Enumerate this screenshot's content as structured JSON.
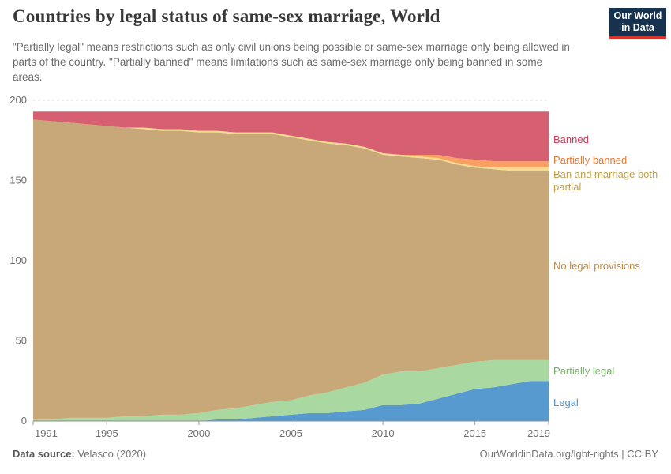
{
  "header": {
    "title": "Countries by legal status of same-sex marriage, World",
    "subtitle": "\"Partially legal\" means restrictions such as only civil unions being possible or same-sex marriage only being allowed in parts of the country. \"Partially banned\" means limitations such as same-sex marriage only being banned in some areas.",
    "logo": {
      "line1": "Our World",
      "line2": "in Data",
      "bg_color": "#16324e",
      "accent_color": "#d8352a"
    }
  },
  "footer": {
    "datasource_label": "Data source:",
    "datasource_value": " Velasco (2020)",
    "link": "OurWorldinData.org/lgbt-rights | CC BY"
  },
  "chart_data": {
    "type": "area",
    "stacked": true,
    "title": "Countries by legal status of same-sex marriage, World",
    "xlabel": "",
    "ylabel": "",
    "ylim": [
      0,
      200
    ],
    "yticks": [
      0,
      50,
      100,
      150,
      200
    ],
    "xticks": [
      1991,
      1995,
      2000,
      2005,
      2010,
      2015,
      2019
    ],
    "grid": "horizontal-dashed",
    "legend_position": "right",
    "total_countries": 193,
    "x": [
      1991,
      1992,
      1993,
      1994,
      1995,
      1996,
      1997,
      1998,
      1999,
      2000,
      2001,
      2002,
      2003,
      2004,
      2005,
      2006,
      2007,
      2008,
      2009,
      2010,
      2011,
      2012,
      2013,
      2014,
      2015,
      2016,
      2017,
      2018,
      2019
    ],
    "series": [
      {
        "id": "legal",
        "name": "Legal",
        "color": "#579ad0",
        "label_color": "#4e93c9",
        "values": [
          0,
          0,
          0,
          0,
          0,
          0,
          0,
          0,
          0,
          0,
          1,
          1,
          2,
          3,
          4,
          5,
          5,
          6,
          7,
          10,
          10,
          11,
          14,
          17,
          20,
          21,
          23,
          25,
          25
        ]
      },
      {
        "id": "partially-legal",
        "name": "Partially legal",
        "color": "#a9d8a0",
        "label_color": "#76b266",
        "values": [
          1,
          1,
          2,
          2,
          2,
          3,
          3,
          4,
          4,
          5,
          6,
          7,
          8,
          9,
          9,
          11,
          13,
          15,
          17,
          19,
          21,
          20,
          19,
          18,
          17,
          17,
          15,
          13,
          13
        ]
      },
      {
        "id": "no-legal-provisions",
        "name": "No legal provisions",
        "color": "#c8a778",
        "label_color": "#ba8a4d",
        "values": [
          187,
          186,
          184,
          183,
          182,
          180,
          179,
          177,
          177,
          175,
          173,
          171,
          169,
          167,
          164,
          159,
          155,
          151,
          146,
          137,
          134,
          133,
          130,
          125,
          121,
          119,
          118,
          118,
          118
        ]
      },
      {
        "id": "ban-and-marriage-both-partial",
        "name": "Ban and marriage both partial",
        "color": "#f4dc8c",
        "label_color": "#bfa050",
        "values": [
          0,
          0,
          0,
          0,
          0,
          0,
          1,
          1,
          1,
          1,
          1,
          1,
          1,
          1,
          1,
          1,
          1,
          1,
          1,
          1,
          1,
          1,
          1,
          1,
          1,
          1,
          2,
          2,
          2
        ]
      },
      {
        "id": "partially-banned",
        "name": "Partially banned",
        "color": "#f8a064",
        "label_color": "#e0793c",
        "values": [
          0,
          0,
          0,
          0,
          0,
          0,
          0,
          0,
          0,
          0,
          0,
          0,
          0,
          0,
          0,
          0,
          0,
          0,
          0,
          0,
          0,
          1,
          2,
          3,
          4,
          4,
          4,
          4,
          4
        ]
      },
      {
        "id": "banned",
        "name": "Banned",
        "color": "#d66072",
        "label_color": "#cd3c56",
        "values": [
          5,
          6,
          7,
          8,
          9,
          10,
          10,
          11,
          11,
          12,
          12,
          13,
          13,
          13,
          15,
          17,
          19,
          20,
          22,
          26,
          27,
          27,
          27,
          29,
          30,
          31,
          31,
          31,
          31
        ]
      }
    ]
  }
}
